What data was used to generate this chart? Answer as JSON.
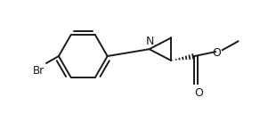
{
  "background": "#ffffff",
  "line_color": "#1a1a1a",
  "line_width": 1.4,
  "font_size": 8.5,
  "br_label": "Br",
  "n_label": "N",
  "o_carbonyl_label": "O",
  "o_ester_label": "O"
}
